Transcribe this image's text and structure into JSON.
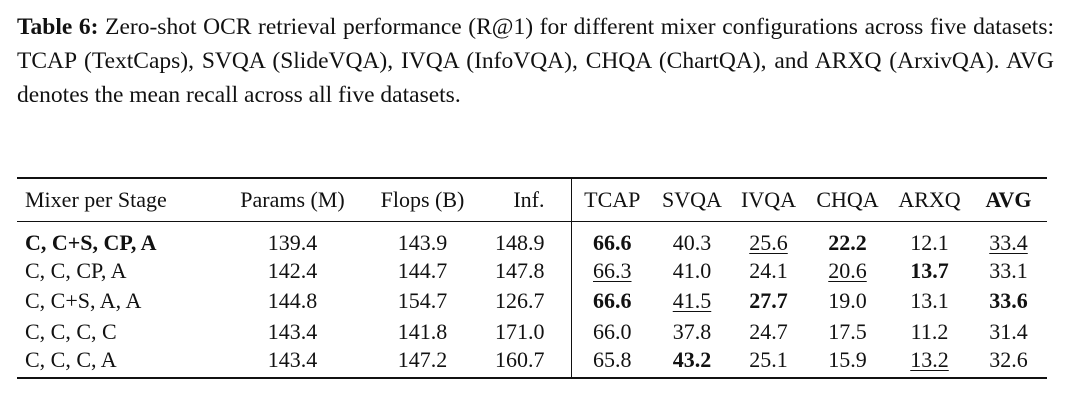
{
  "caption": {
    "label": "Table 6:",
    "text": "Zero-shot OCR retrieval performance (R@1) for different mixer configurations across five datasets: TCAP (TextCaps), SVQA (SlideVQA), IVQA (InfoVQA), CHQA (ChartQA), and ARXQ (ArxivQA). AVG denotes the mean recall across all five datasets."
  },
  "table": {
    "header": [
      "Mixer per Stage",
      "Params (M)",
      "Flops (B)",
      "Inf.",
      "TCAP",
      "SVQA",
      "IVQA",
      "CHQA",
      "ARXQ",
      "AVG"
    ],
    "rows": [
      [
        "C, C+S, CP, A",
        "139.4",
        "143.9",
        "148.9",
        "66.6",
        "40.3",
        "25.6",
        "22.2",
        "12.1",
        "33.4"
      ],
      [
        "C, C, CP, A",
        "142.4",
        "144.7",
        "147.8",
        "66.3",
        "41.0",
        "24.1",
        "20.6",
        "13.7",
        "33.1"
      ],
      [
        "C, C+S, A, A",
        "144.8",
        "154.7",
        "126.7",
        "66.6",
        "41.5",
        "27.7",
        "19.0",
        "13.1",
        "33.6"
      ],
      [
        "C, C, C, C",
        "143.4",
        "141.8",
        "171.0",
        "66.0",
        "37.8",
        "24.7",
        "17.5",
        "11.2",
        "31.4"
      ],
      [
        "C, C, C, A",
        "143.4",
        "147.2",
        "160.7",
        "65.8",
        "43.2",
        "25.1",
        "15.9",
        "13.2",
        "32.6"
      ]
    ]
  }
}
